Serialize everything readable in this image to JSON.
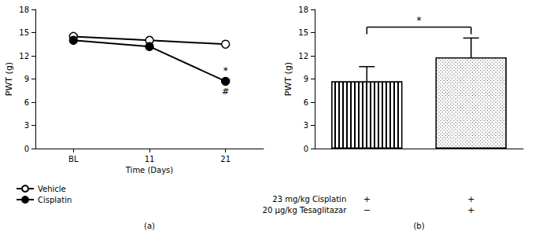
{
  "chart_data": [
    {
      "type": "line",
      "title": "(a)",
      "categories": [
        "BL",
        "11",
        "21"
      ],
      "x_label": "Time (Days)",
      "y_label": "PWT (g)",
      "series": [
        {
          "name": "Vehicle",
          "color": "#000000",
          "marker": "circle_open",
          "values": [
            14.5,
            14.0,
            13.5
          ]
        },
        {
          "name": "Cisplatin",
          "color": "#000000",
          "marker": "circle_filled",
          "values": [
            14.0,
            13.2,
            8.7
          ]
        }
      ],
      "annotations": [
        {
          "text": "*",
          "series": "Cisplatin",
          "category": "21",
          "position": "above"
        },
        {
          "text": "#",
          "series": "Cisplatin",
          "category": "21",
          "position": "below"
        }
      ],
      "ylim": [
        0,
        18
      ],
      "yticks": [
        0,
        3,
        6,
        9,
        12,
        15,
        18
      ],
      "grid": false,
      "legend": "bottom-left"
    },
    {
      "type": "bar",
      "title": "(b)",
      "categories": [
        null,
        null
      ],
      "y_label": "PWT (g)",
      "values": [
        8.7,
        11.8
      ],
      "errors": [
        1.9,
        2.5
      ],
      "colors": [
        "#ffffff",
        "#ffffff"
      ],
      "annotations": [
        {
          "text": "*",
          "type": "bracket"
        }
      ],
      "rows": [
        {
          "label": "23 mg/kg Cisplatin",
          "values": [
            "+",
            "+"
          ]
        },
        {
          "label": "20 μg/kg Tesaglitazar",
          "values": [
            "−",
            "+"
          ]
        }
      ],
      "ylim": [
        0,
        18
      ],
      "yticks": [
        0,
        3,
        6,
        9,
        12,
        15,
        18
      ],
      "grid": false
    }
  ]
}
